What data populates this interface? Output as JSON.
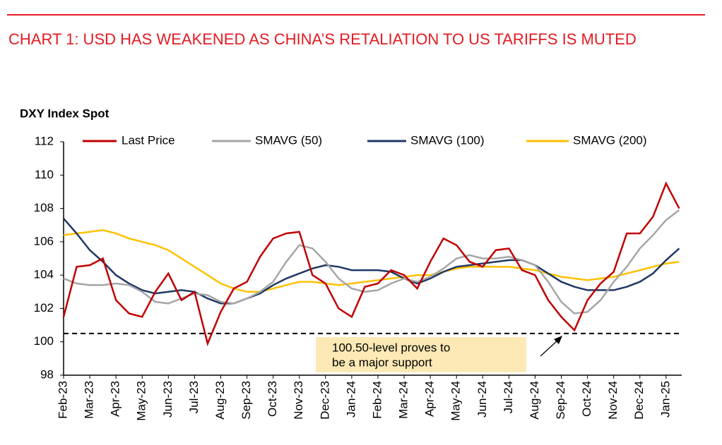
{
  "chart_data": {
    "type": "line",
    "title": "CHART 1: USD HAS WEAKENED AS CHINA’S RETALIATION TO US TARIFFS IS MUTED",
    "ylabel": "DXY Index Spot",
    "categories": [
      "Feb-23",
      null,
      "Mar-23",
      null,
      "Apr-23",
      null,
      "May-23",
      null,
      "Jun-23",
      null,
      "Jul-23",
      null,
      "Aug-23",
      null,
      "Sep-23",
      null,
      "Oct-23",
      null,
      "Nov-23",
      null,
      "Dec-23",
      null,
      "Jan-24",
      null,
      "Feb-24",
      null,
      "Mar-24",
      null,
      "Apr-24",
      null,
      "May-24",
      null,
      "Jun-24",
      null,
      "Jul-24",
      null,
      "Aug-24",
      null,
      "Sep-24",
      null,
      "Oct-24",
      null,
      "Nov-24",
      null,
      "Dec-24",
      null,
      "Jan-25",
      null
    ],
    "series": [
      {
        "name": "Last Price",
        "color": "#c00000",
        "values": [
          101.5,
          104.5,
          104.6,
          105,
          102.5,
          101.7,
          101.5,
          103,
          104.1,
          102.5,
          103,
          99.9,
          101.8,
          103.2,
          103.6,
          105.1,
          106.2,
          106.5,
          106.6,
          104,
          103.5,
          102,
          101.5,
          103.3,
          103.5,
          104.3,
          104,
          103.2,
          104.8,
          106.2,
          105.8,
          104.8,
          104.5,
          105.5,
          105.6,
          104.3,
          104,
          102.5,
          101.5,
          100.7,
          102.5,
          103.5,
          104.2,
          106.5,
          106.5,
          107.5,
          109.5,
          108
        ]
      },
      {
        "name": "SMAVG (50)",
        "color": "#a6a6a6",
        "values": [
          103.8,
          103.5,
          103.4,
          103.4,
          103.5,
          103.4,
          103,
          102.4,
          102.3,
          102.6,
          102.9,
          102.8,
          102.4,
          102.3,
          102.6,
          103,
          103.6,
          104.8,
          105.8,
          105.6,
          104.8,
          103.8,
          103.2,
          103,
          103.1,
          103.5,
          103.8,
          103.6,
          103.9,
          104.4,
          105,
          105.2,
          105,
          105,
          105.1,
          104.9,
          104.6,
          103.6,
          102.4,
          101.7,
          101.8,
          102.5,
          103.6,
          104.5,
          105.6,
          106.4,
          107.3,
          107.9
        ]
      },
      {
        "name": "SMAVG (100)",
        "color": "#1f3864",
        "values": [
          107.4,
          106.5,
          105.5,
          104.8,
          104,
          103.5,
          103.1,
          102.9,
          103,
          103.1,
          103,
          102.6,
          102.3,
          102.3,
          102.6,
          102.9,
          103.4,
          103.8,
          104.1,
          104.4,
          104.6,
          104.5,
          104.3,
          104.3,
          104.3,
          104.2,
          103.8,
          103.5,
          103.8,
          104.2,
          104.5,
          104.6,
          104.7,
          104.8,
          104.9,
          104.9,
          104.6,
          104.1,
          103.6,
          103.3,
          103.1,
          103.1,
          103.1,
          103.3,
          103.6,
          104.1,
          104.9,
          105.6
        ]
      },
      {
        "name": "SMAVG (200)",
        "color": "#ffc000",
        "values": [
          106.4,
          106.5,
          106.6,
          106.7,
          106.5,
          106.2,
          106,
          105.8,
          105.5,
          105,
          104.5,
          104,
          103.5,
          103.2,
          103,
          103,
          103.2,
          103.4,
          103.6,
          103.6,
          103.5,
          103.4,
          103.5,
          103.6,
          103.7,
          103.8,
          103.9,
          104,
          104,
          104.2,
          104.4,
          104.5,
          104.5,
          104.5,
          104.5,
          104.4,
          104.3,
          104.1,
          103.9,
          103.8,
          103.7,
          103.8,
          103.9,
          104.1,
          104.3,
          104.5,
          104.7,
          104.8
        ]
      }
    ],
    "ylim": [
      98,
      112
    ],
    "yticks": [
      98,
      100,
      102,
      104,
      106,
      108,
      110,
      112
    ],
    "hline": 100.5,
    "annotation": [
      "100.50-level proves to",
      "be a major support"
    ]
  }
}
